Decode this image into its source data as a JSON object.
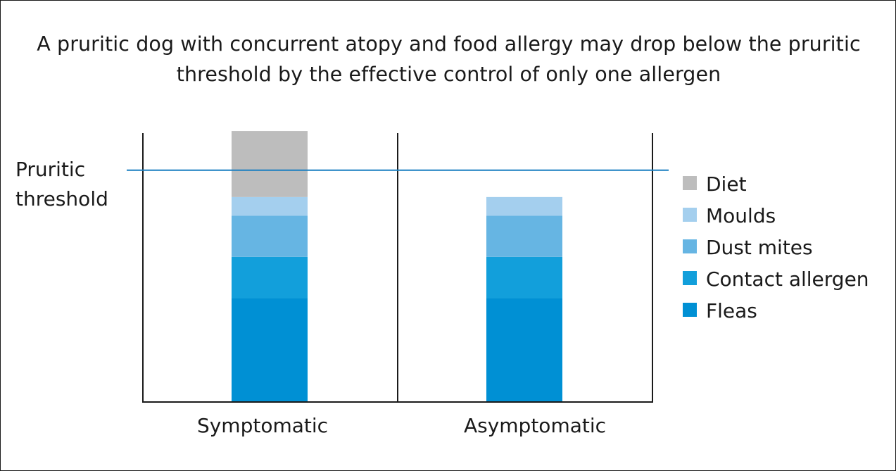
{
  "title_lines": [
    "A pruritic dog with concurrent atopy and food allergy may drop below the pruritic",
    "threshold by the effective control of only one allergen"
  ],
  "chart_data": {
    "type": "bar",
    "stacked": true,
    "categories": [
      "Symptomatic",
      "Asymptomatic"
    ],
    "series": [
      {
        "name": "Fleas",
        "color": "#0090d4",
        "values": [
          2.5,
          2.5
        ]
      },
      {
        "name": "Contact allergen",
        "color": "#129fdb",
        "values": [
          1.0,
          1.0
        ]
      },
      {
        "name": "Dust mites",
        "color": "#66b5e3",
        "values": [
          1.0,
          1.0
        ]
      },
      {
        "name": "Moulds",
        "color": "#a4cfee",
        "values": [
          0.45,
          0.45
        ]
      },
      {
        "name": "Diet",
        "color": "#bdbdbd",
        "values": [
          1.6,
          0
        ]
      }
    ],
    "legend_order": [
      "Diet",
      "Moulds",
      "Dust mites",
      "Contact allergen",
      "Fleas"
    ],
    "legend_position": "right",
    "threshold": {
      "label_lines": [
        "Pruritic",
        "threshold"
      ],
      "value": 5.6,
      "color": "#1a7fc1"
    },
    "ylim": [
      0,
      6.5
    ],
    "grid": false
  }
}
